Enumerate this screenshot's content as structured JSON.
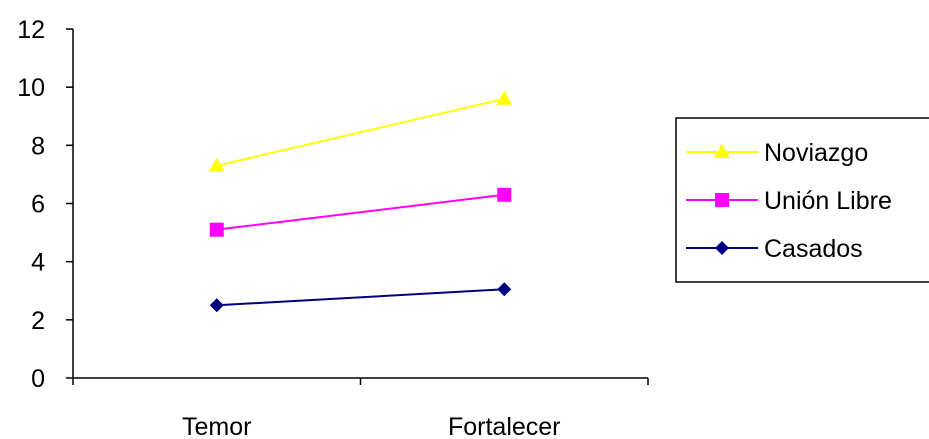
{
  "chart_data": {
    "type": "line",
    "categories": [
      "Temor",
      "Fortalecer"
    ],
    "ylim": [
      0,
      12
    ],
    "yticks": [
      0,
      2,
      4,
      6,
      8,
      10,
      12
    ],
    "grid": false,
    "legend_position": "right",
    "series": [
      {
        "name": "Noviazgo",
        "values": [
          7.3,
          9.6
        ],
        "color": "#FFFF00",
        "marker": "triangle"
      },
      {
        "name": "Unión Libre",
        "values": [
          5.1,
          6.3
        ],
        "color": "#FF00FF",
        "marker": "square"
      },
      {
        "name": "Casados",
        "values": [
          2.5,
          3.05
        ],
        "color": "#000080",
        "marker": "diamond"
      }
    ]
  }
}
